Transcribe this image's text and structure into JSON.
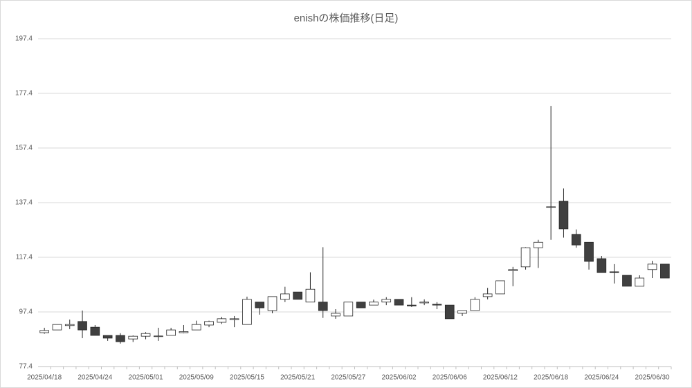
{
  "chart_data": {
    "type": "candlestick",
    "title": "enishの株価推移(日足)",
    "categories": [
      "2025/04/18",
      null,
      null,
      null,
      "2025/04/24",
      null,
      null,
      null,
      "2025/05/01",
      null,
      null,
      null,
      "2025/05/09",
      null,
      null,
      null,
      "2025/05/15",
      null,
      null,
      null,
      "2025/05/21",
      null,
      null,
      null,
      "2025/05/27",
      null,
      null,
      null,
      "2025/06/02",
      null,
      null,
      null,
      "2025/06/06",
      null,
      null,
      null,
      "2025/06/12",
      null,
      null,
      null,
      "2025/06/18",
      null,
      null,
      null,
      "2025/06/24",
      null,
      null,
      null,
      "2025/06/30",
      null
    ],
    "open": [
      89.8,
      90.8,
      92.4,
      93.9,
      91.8,
      88.8,
      88.8,
      87.5,
      88.5,
      88.4,
      88.8,
      89.8,
      90.8,
      92.6,
      93.6,
      94.6,
      92.8,
      101.0,
      97.9,
      102.0,
      104.7,
      101.0,
      101.0,
      95.9,
      95.9,
      101.0,
      99.9,
      101.0,
      102.0,
      99.9,
      100.7,
      100.2,
      99.9,
      96.9,
      97.9,
      103.0,
      104.0,
      112.5,
      113.9,
      120.9,
      135.9,
      137.9,
      125.8,
      122.9,
      116.9,
      112.1,
      110.8,
      106.8,
      112.9,
      114.9
    ],
    "high": [
      91.6,
      92.8,
      94.6,
      97.9,
      92.6,
      88.8,
      89.6,
      88.8,
      90.0,
      91.6,
      91.6,
      92.6,
      94.2,
      94.2,
      95.6,
      95.9,
      103.0,
      101.0,
      103.0,
      106.6,
      104.7,
      111.9,
      121.1,
      98.4,
      101.0,
      101.0,
      101.9,
      102.8,
      102.0,
      102.8,
      102.0,
      101.0,
      99.9,
      97.9,
      102.8,
      106.2,
      108.8,
      113.9,
      121.1,
      123.8,
      172.8,
      142.6,
      127.6,
      122.9,
      117.9,
      114.9,
      110.8,
      110.8,
      116.1,
      114.9
    ],
    "low": [
      89.4,
      90.8,
      91.1,
      87.8,
      88.8,
      86.8,
      85.8,
      86.4,
      87.4,
      86.8,
      88.8,
      89.6,
      90.8,
      91.8,
      93.0,
      91.8,
      92.8,
      96.4,
      96.9,
      101.0,
      102.0,
      101.0,
      95.2,
      94.9,
      95.9,
      98.9,
      99.9,
      99.9,
      99.9,
      99.2,
      99.9,
      98.4,
      94.9,
      95.9,
      97.9,
      102.0,
      104.0,
      106.8,
      112.9,
      113.5,
      123.8,
      124.6,
      120.9,
      112.9,
      111.8,
      107.8,
      106.8,
      106.8,
      109.8,
      109.8
    ],
    "close": [
      90.6,
      92.8,
      92.8,
      90.8,
      88.8,
      87.8,
      86.5,
      88.5,
      89.5,
      88.6,
      90.8,
      90.2,
      92.8,
      93.9,
      94.9,
      94.9,
      102.0,
      98.9,
      103.0,
      104.0,
      102.0,
      105.7,
      97.9,
      96.9,
      101.0,
      98.9,
      101.0,
      102.0,
      99.9,
      99.6,
      101.0,
      99.9,
      94.9,
      97.9,
      102.0,
      104.0,
      108.8,
      112.9,
      120.9,
      122.9,
      135.9,
      127.8,
      121.9,
      115.9,
      111.8,
      111.8,
      106.8,
      109.8,
      114.9,
      109.8
    ],
    "up_color": "#ffffff",
    "down_color": "#404040",
    "line_color": "#262626",
    "ylim": [
      77.4,
      197.4
    ],
    "yticks": [
      77.4,
      97.4,
      117.4,
      137.4,
      157.4,
      177.4,
      197.4
    ],
    "grid": true
  }
}
